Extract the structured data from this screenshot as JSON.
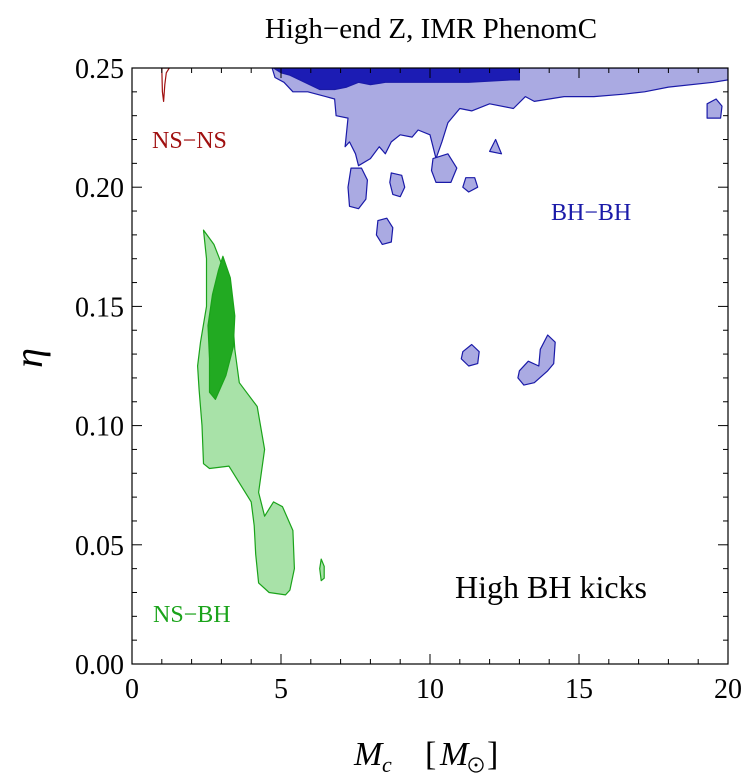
{
  "chart_data": {
    "type": "contour",
    "title": "High−end Z,   IMR PhenomC",
    "xlabel": "M_c  [M_⊙]",
    "ylabel": "η",
    "xlim": [
      0,
      20
    ],
    "ylim": [
      0,
      0.25
    ],
    "xticks": [
      "0",
      "5",
      "10",
      "15",
      "20"
    ],
    "yticks": [
      "0.00",
      "0.05",
      "0.10",
      "0.15",
      "0.20",
      "0.25"
    ],
    "grid": false,
    "annotation": "High BH kicks",
    "regions": [
      {
        "name": "NS−NS",
        "color": "#a01010",
        "contours": [
          {
            "level": "outer",
            "fill": "none",
            "points": [
              [
                1.0,
                0.25
              ],
              [
                1.02,
                0.24
              ],
              [
                1.06,
                0.236
              ],
              [
                1.1,
                0.243
              ],
              [
                1.15,
                0.248
              ],
              [
                1.25,
                0.25
              ]
            ]
          }
        ]
      },
      {
        "name": "NS−BH",
        "color": "#1aa31a",
        "contours": [
          {
            "level": "outer",
            "fill": "#a8e2a8",
            "points": [
              [
                2.4,
                0.182
              ],
              [
                2.75,
                0.176
              ],
              [
                3.0,
                0.168
              ],
              [
                3.35,
                0.15
              ],
              [
                3.45,
                0.132
              ],
              [
                3.6,
                0.118
              ],
              [
                4.2,
                0.108
              ],
              [
                4.45,
                0.09
              ],
              [
                4.25,
                0.072
              ],
              [
                4.45,
                0.062
              ],
              [
                4.75,
                0.068
              ],
              [
                5.05,
                0.066
              ],
              [
                5.4,
                0.056
              ],
              [
                5.45,
                0.04
              ],
              [
                5.3,
                0.031
              ],
              [
                5.15,
                0.029
              ],
              [
                4.6,
                0.03
              ],
              [
                4.25,
                0.034
              ],
              [
                4.15,
                0.046
              ],
              [
                4.1,
                0.058
              ],
              [
                4.0,
                0.068
              ],
              [
                3.25,
                0.083
              ],
              [
                2.6,
                0.082
              ],
              [
                2.4,
                0.084
              ],
              [
                2.35,
                0.1
              ],
              [
                2.25,
                0.115
              ],
              [
                2.2,
                0.125
              ],
              [
                2.3,
                0.135
              ],
              [
                2.5,
                0.15
              ],
              [
                2.5,
                0.17
              ]
            ]
          },
          {
            "level": "inner",
            "fill": "#22aa22",
            "points": [
              [
                3.05,
                0.171
              ],
              [
                3.3,
                0.162
              ],
              [
                3.45,
                0.146
              ],
              [
                3.4,
                0.133
              ],
              [
                3.15,
                0.121
              ],
              [
                2.8,
                0.111
              ],
              [
                2.6,
                0.114
              ],
              [
                2.6,
                0.128
              ],
              [
                2.55,
                0.142
              ],
              [
                2.7,
                0.155
              ],
              [
                2.9,
                0.165
              ]
            ]
          },
          {
            "level": "outer",
            "fill": "#a8e2a8",
            "points": [
              [
                6.35,
                0.044
              ],
              [
                6.45,
                0.041
              ],
              [
                6.45,
                0.036
              ],
              [
                6.35,
                0.035
              ],
              [
                6.3,
                0.04
              ]
            ]
          }
        ]
      },
      {
        "name": "BH−BH",
        "color": "#1a1aa8",
        "contours": [
          {
            "level": "outer",
            "fill": "#aaaae2",
            "points": [
              [
                4.7,
                0.25
              ],
              [
                20.0,
                0.25
              ],
              [
                20.0,
                0.245
              ],
              [
                19.5,
                0.244
              ],
              [
                18.0,
                0.242
              ],
              [
                17.2,
                0.24
              ],
              [
                16.5,
                0.239
              ],
              [
                15.5,
                0.238
              ],
              [
                14.5,
                0.238
              ],
              [
                13.5,
                0.236
              ],
              [
                13.2,
                0.238
              ],
              [
                12.8,
                0.233
              ],
              [
                12.0,
                0.235
              ],
              [
                11.4,
                0.232
              ],
              [
                11.0,
                0.233
              ],
              [
                10.6,
                0.227
              ],
              [
                10.4,
                0.219
              ],
              [
                10.2,
                0.212
              ],
              [
                10.0,
                0.222
              ],
              [
                9.6,
                0.224
              ],
              [
                9.4,
                0.221
              ],
              [
                9.0,
                0.222
              ],
              [
                8.7,
                0.219
              ],
              [
                8.5,
                0.214
              ],
              [
                8.3,
                0.217
              ],
              [
                8.0,
                0.212
              ],
              [
                7.6,
                0.209
              ],
              [
                7.5,
                0.214
              ],
              [
                7.3,
                0.219
              ],
              [
                7.15,
                0.217
              ],
              [
                7.25,
                0.229
              ],
              [
                6.85,
                0.23
              ],
              [
                6.8,
                0.237
              ],
              [
                6.5,
                0.238
              ],
              [
                5.9,
                0.24
              ],
              [
                5.4,
                0.24
              ],
              [
                5.1,
                0.244
              ],
              [
                4.8,
                0.246
              ]
            ]
          },
          {
            "level": "inner",
            "fill": "#1c1cb4",
            "points": [
              [
                4.75,
                0.25
              ],
              [
                13.0,
                0.25
              ],
              [
                13.0,
                0.245
              ],
              [
                12.7,
                0.245
              ],
              [
                11.3,
                0.244
              ],
              [
                10.0,
                0.244
              ],
              [
                8.5,
                0.244
              ],
              [
                8.0,
                0.243
              ],
              [
                7.6,
                0.244
              ],
              [
                7.2,
                0.242
              ],
              [
                6.8,
                0.241
              ],
              [
                6.3,
                0.241
              ],
              [
                5.8,
                0.244
              ],
              [
                5.3,
                0.247
              ],
              [
                5.0,
                0.248
              ]
            ]
          },
          {
            "level": "outer",
            "fill": "#aaaae2",
            "points": [
              [
                7.35,
                0.208
              ],
              [
                7.7,
                0.208
              ],
              [
                7.9,
                0.203
              ],
              [
                7.85,
                0.195
              ],
              [
                7.6,
                0.191
              ],
              [
                7.3,
                0.192
              ],
              [
                7.25,
                0.2
              ]
            ]
          },
          {
            "level": "outer",
            "fill": "#aaaae2",
            "points": [
              [
                8.7,
                0.206
              ],
              [
                9.05,
                0.205
              ],
              [
                9.15,
                0.2
              ],
              [
                9.0,
                0.196
              ],
              [
                8.75,
                0.197
              ],
              [
                8.65,
                0.202
              ]
            ]
          },
          {
            "level": "outer",
            "fill": "#aaaae2",
            "points": [
              [
                8.25,
                0.186
              ],
              [
                8.55,
                0.187
              ],
              [
                8.75,
                0.183
              ],
              [
                8.7,
                0.177
              ],
              [
                8.4,
                0.176
              ],
              [
                8.2,
                0.18
              ]
            ]
          },
          {
            "level": "outer",
            "fill": "#aaaae2",
            "points": [
              [
                10.1,
                0.212
              ],
              [
                10.6,
                0.214
              ],
              [
                10.9,
                0.208
              ],
              [
                10.7,
                0.202
              ],
              [
                10.2,
                0.202
              ],
              [
                10.05,
                0.207
              ]
            ]
          },
          {
            "level": "outer",
            "fill": "#aaaae2",
            "points": [
              [
                11.2,
                0.204
              ],
              [
                11.5,
                0.204
              ],
              [
                11.6,
                0.2
              ],
              [
                11.3,
                0.198
              ],
              [
                11.1,
                0.2
              ]
            ]
          },
          {
            "level": "outer",
            "fill": "#aaaae2",
            "points": [
              [
                12.0,
                0.215
              ],
              [
                12.2,
                0.22
              ],
              [
                12.4,
                0.214
              ]
            ]
          },
          {
            "level": "outer",
            "fill": "#aaaae2",
            "points": [
              [
                19.3,
                0.235
              ],
              [
                19.6,
                0.237
              ],
              [
                19.8,
                0.234
              ],
              [
                19.75,
                0.229
              ],
              [
                19.3,
                0.229
              ]
            ]
          },
          {
            "level": "outer",
            "fill": "#aaaae2",
            "points": [
              [
                11.1,
                0.131
              ],
              [
                11.4,
                0.134
              ],
              [
                11.65,
                0.131
              ],
              [
                11.6,
                0.126
              ],
              [
                11.3,
                0.125
              ],
              [
                11.05,
                0.128
              ]
            ]
          },
          {
            "level": "outer",
            "fill": "#aaaae2",
            "points": [
              [
                13.0,
                0.123
              ],
              [
                13.3,
                0.127
              ],
              [
                13.65,
                0.125
              ],
              [
                13.7,
                0.132
              ],
              [
                13.95,
                0.138
              ],
              [
                14.2,
                0.135
              ],
              [
                14.15,
                0.126
              ],
              [
                13.95,
                0.123
              ],
              [
                13.5,
                0.118
              ],
              [
                13.15,
                0.117
              ],
              [
                12.95,
                0.12
              ]
            ]
          }
        ]
      }
    ]
  }
}
